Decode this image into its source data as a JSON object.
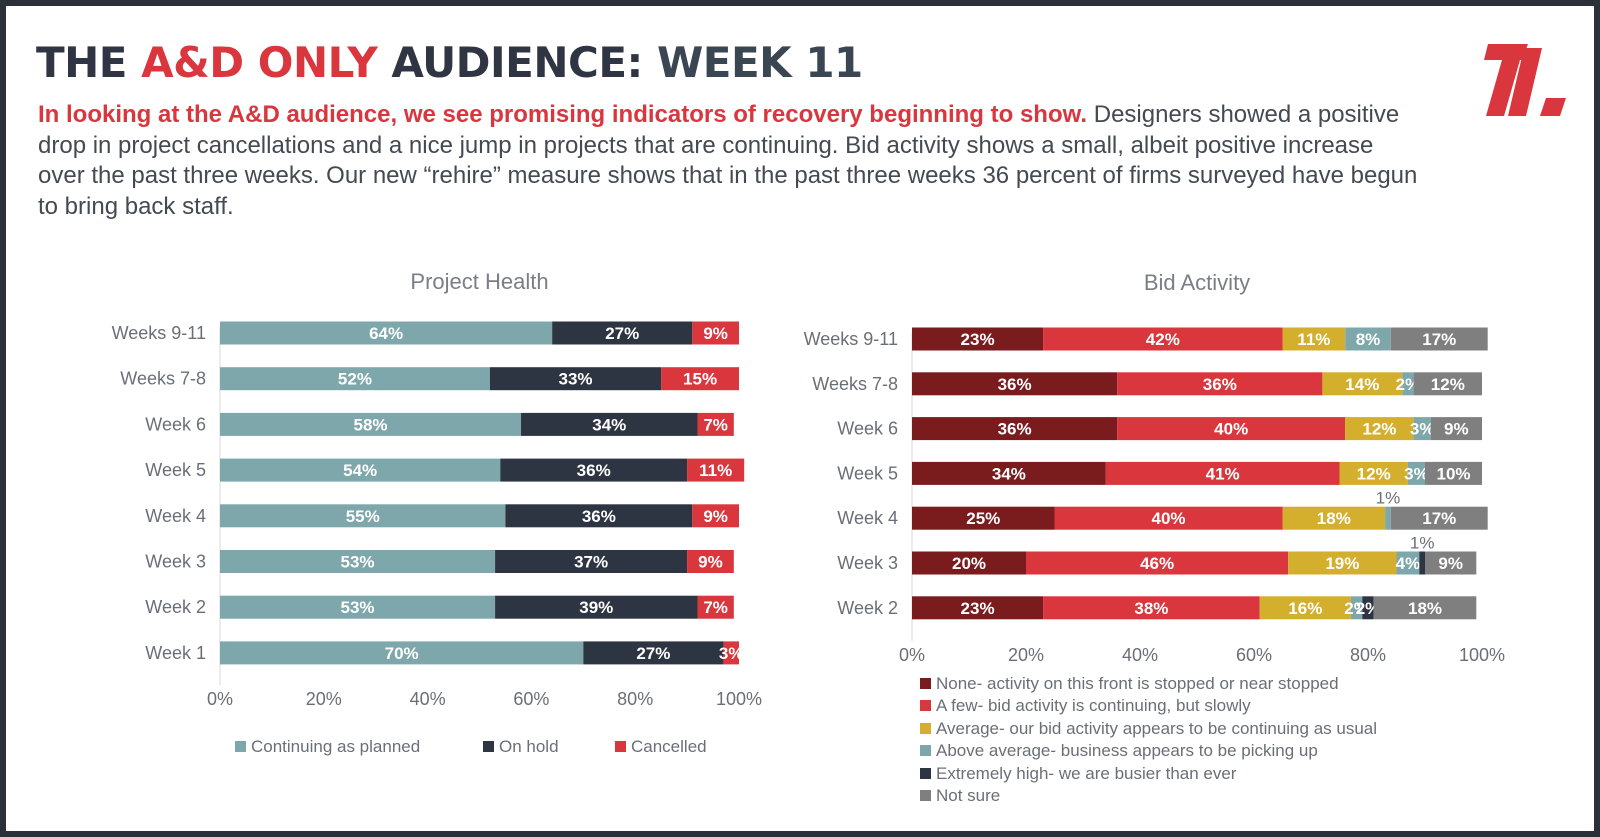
{
  "header": {
    "title_part1": "THE ",
    "title_part2": "A&D ONLY",
    "title_part3": " AUDIENCE: ",
    "title_part4": "WEEK 11",
    "lead": "In looking at the A&D audience, we see promising indicators of recovery beginning to show.",
    "body": " Designers showed a positive drop in project cancellations and a nice jump in projects that are continuing. Bid activity shows a small, albeit positive increase over the past three weeks. Our new “rehire” measure shows that in the past three weeks 36 percent of firms surveyed have begun to bring back staff."
  },
  "logo": {
    "icon": "brand-slash-logo",
    "color": "#d9363e"
  },
  "chart_data": [
    {
      "type": "bar",
      "orientation": "horizontal",
      "stacked": true,
      "title": "Project Health",
      "categories": [
        "Weeks 9-11",
        "Weeks 7-8",
        "Week 6",
        "Week 5",
        "Week 4",
        "Week 3",
        "Week 2",
        "Week 1"
      ],
      "series": [
        {
          "name": "Continuing as planned",
          "color": "#7ea7ab",
          "values": [
            64,
            52,
            58,
            54,
            55,
            53,
            53,
            70
          ]
        },
        {
          "name": "On hold",
          "color": "#2e3542",
          "values": [
            27,
            33,
            34,
            36,
            36,
            37,
            39,
            27
          ]
        },
        {
          "name": "Cancelled",
          "color": "#d9363e",
          "values": [
            9,
            15,
            7,
            11,
            9,
            9,
            7,
            3
          ]
        }
      ],
      "xlim": [
        0,
        100
      ],
      "xticks": [
        "0%",
        "20%",
        "40%",
        "60%",
        "80%",
        "100%"
      ],
      "value_suffix": "%",
      "legend_position": "bottom",
      "grid": false
    },
    {
      "type": "bar",
      "orientation": "horizontal",
      "stacked": true,
      "title": "Bid Activity",
      "categories": [
        "Weeks 9-11",
        "Weeks 7-8",
        "Week 6",
        "Week 5",
        "Week 4",
        "Week 3",
        "Week 2"
      ],
      "series": [
        {
          "name": "None- activity on this front is stopped or near stopped",
          "color": "#7a1b1e",
          "values": [
            23,
            36,
            36,
            34,
            25,
            20,
            23
          ]
        },
        {
          "name": "A few- bid activity is continuing, but slowly",
          "color": "#d9363e",
          "values": [
            42,
            36,
            40,
            41,
            40,
            46,
            38
          ]
        },
        {
          "name": "Average- our bid activity appears to be continuing as usual",
          "color": "#d4ae2d",
          "values": [
            11,
            14,
            12,
            12,
            18,
            19,
            16
          ]
        },
        {
          "name": "Above average- business appears to be picking up",
          "color": "#7ea7ab",
          "values": [
            8,
            2,
            3,
            3,
            1,
            4,
            2
          ]
        },
        {
          "name": "Extremely high- we are busier than ever",
          "color": "#2e3542",
          "values": [
            0,
            0,
            0,
            0,
            0,
            1,
            2
          ]
        },
        {
          "name": "Not sure",
          "color": "#7f7f7f",
          "values": [
            17,
            12,
            9,
            10,
            17,
            9,
            18
          ]
        }
      ],
      "xlim": [
        0,
        100
      ],
      "xticks": [
        "0%",
        "20%",
        "40%",
        "60%",
        "80%",
        "100%"
      ],
      "value_suffix": "%",
      "legend_position": "bottom",
      "grid": false
    }
  ]
}
